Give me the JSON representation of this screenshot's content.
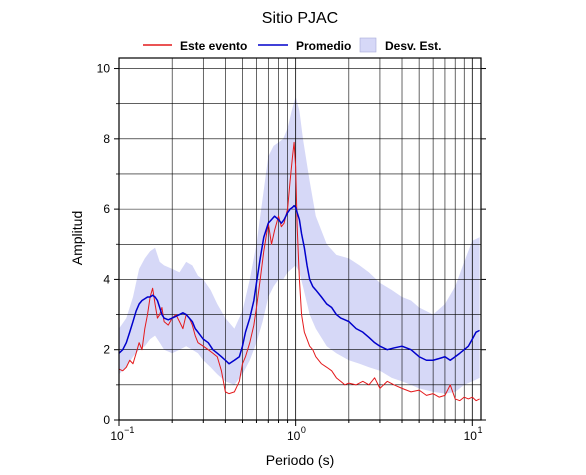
{
  "chart_data": {
    "type": "line",
    "title": "Sitio PJAC",
    "xlabel": "Periodo (s)",
    "ylabel": "Amplitud",
    "x_scale": "log",
    "xlim": [
      0.1,
      11.2
    ],
    "ylim": [
      0,
      10.3
    ],
    "y_ticks": [
      0,
      2,
      4,
      6,
      8,
      10
    ],
    "x_tick_labels": [
      {
        "value": 0.1,
        "base": "10",
        "exp": "−1"
      },
      {
        "value": 1,
        "base": "10",
        "exp": "0"
      },
      {
        "value": 10,
        "base": "10",
        "exp": "1"
      }
    ],
    "grid": true,
    "legend_position": "top",
    "legend": [
      {
        "label": "Este evento",
        "color": "#e41a1c",
        "kind": "line"
      },
      {
        "label": "Promedio",
        "color": "#0000cc",
        "kind": "line"
      },
      {
        "label": "Desv. Est.",
        "color": "#d6d8f7",
        "kind": "band"
      }
    ],
    "series": [
      {
        "name": "Este evento",
        "color": "#e41a1c",
        "x": [
          0.1,
          0.105,
          0.11,
          0.115,
          0.12,
          0.125,
          0.13,
          0.135,
          0.14,
          0.145,
          0.15,
          0.155,
          0.16,
          0.165,
          0.17,
          0.175,
          0.18,
          0.19,
          0.2,
          0.21,
          0.22,
          0.23,
          0.24,
          0.25,
          0.26,
          0.27,
          0.28,
          0.3,
          0.32,
          0.34,
          0.36,
          0.38,
          0.4,
          0.42,
          0.45,
          0.48,
          0.5,
          0.52,
          0.55,
          0.58,
          0.6,
          0.63,
          0.66,
          0.7,
          0.73,
          0.76,
          0.8,
          0.83,
          0.86,
          0.9,
          0.93,
          0.96,
          0.98,
          1.0,
          1.02,
          1.05,
          1.08,
          1.12,
          1.16,
          1.2,
          1.25,
          1.3,
          1.4,
          1.5,
          1.6,
          1.7,
          1.8,
          1.9,
          2.0,
          2.2,
          2.4,
          2.6,
          2.8,
          3.0,
          3.3,
          3.6,
          4.0,
          4.5,
          5.0,
          5.5,
          6.0,
          6.5,
          7.0,
          7.5,
          8.0,
          8.5,
          9.0,
          9.5,
          10.0,
          10.5,
          11.0
        ],
        "values": [
          1.45,
          1.4,
          1.5,
          1.7,
          1.6,
          1.9,
          2.2,
          2.0,
          2.6,
          3.0,
          3.5,
          3.75,
          3.3,
          2.9,
          3.0,
          3.2,
          2.8,
          2.7,
          2.9,
          3.0,
          2.8,
          2.6,
          3.0,
          2.9,
          2.7,
          2.4,
          2.2,
          2.1,
          2.0,
          1.9,
          1.8,
          1.4,
          0.8,
          0.75,
          0.8,
          1.1,
          1.6,
          1.8,
          2.2,
          2.7,
          3.2,
          4.0,
          4.8,
          5.6,
          5.0,
          5.4,
          5.8,
          5.5,
          5.6,
          6.0,
          6.8,
          7.5,
          7.9,
          7.2,
          5.5,
          4.0,
          3.0,
          2.5,
          2.3,
          2.1,
          2.0,
          1.8,
          1.6,
          1.5,
          1.4,
          1.2,
          1.1,
          1.0,
          1.05,
          1.0,
          1.1,
          1.0,
          1.2,
          0.9,
          1.1,
          1.0,
          0.9,
          0.8,
          0.85,
          0.7,
          0.75,
          0.65,
          0.7,
          1.0,
          0.6,
          0.55,
          0.65,
          0.6,
          0.65,
          0.55,
          0.6
        ]
      },
      {
        "name": "Promedio",
        "color": "#0000cc",
        "x": [
          0.1,
          0.105,
          0.11,
          0.115,
          0.12,
          0.125,
          0.13,
          0.135,
          0.14,
          0.145,
          0.15,
          0.155,
          0.16,
          0.165,
          0.17,
          0.175,
          0.18,
          0.19,
          0.2,
          0.21,
          0.22,
          0.23,
          0.24,
          0.25,
          0.26,
          0.27,
          0.28,
          0.3,
          0.32,
          0.34,
          0.36,
          0.38,
          0.4,
          0.42,
          0.45,
          0.48,
          0.5,
          0.52,
          0.55,
          0.58,
          0.6,
          0.63,
          0.66,
          0.7,
          0.73,
          0.76,
          0.8,
          0.83,
          0.86,
          0.9,
          0.93,
          0.96,
          0.98,
          1.0,
          1.02,
          1.05,
          1.08,
          1.12,
          1.16,
          1.2,
          1.25,
          1.3,
          1.4,
          1.5,
          1.6,
          1.7,
          1.8,
          1.9,
          2.0,
          2.2,
          2.4,
          2.6,
          2.8,
          3.0,
          3.3,
          3.6,
          4.0,
          4.5,
          5.0,
          5.5,
          6.0,
          6.5,
          7.0,
          7.5,
          8.0,
          8.5,
          9.0,
          9.5,
          10.0,
          10.5,
          11.0
        ],
        "values": [
          1.9,
          2.0,
          2.2,
          2.5,
          2.8,
          3.1,
          3.3,
          3.4,
          3.45,
          3.5,
          3.5,
          3.55,
          3.5,
          3.4,
          3.2,
          3.0,
          2.9,
          2.85,
          2.9,
          2.95,
          3.0,
          3.05,
          3.0,
          2.9,
          2.8,
          2.6,
          2.5,
          2.3,
          2.2,
          2.0,
          1.9,
          1.8,
          1.7,
          1.6,
          1.7,
          1.8,
          2.1,
          2.5,
          2.9,
          3.4,
          3.9,
          4.6,
          5.2,
          5.6,
          5.7,
          5.8,
          5.7,
          5.6,
          5.7,
          5.9,
          6.0,
          6.05,
          6.1,
          6.05,
          5.9,
          5.7,
          5.3,
          4.9,
          4.4,
          4.0,
          3.8,
          3.7,
          3.5,
          3.3,
          3.2,
          3.0,
          2.9,
          2.85,
          2.8,
          2.6,
          2.5,
          2.35,
          2.2,
          2.1,
          2.0,
          2.05,
          2.1,
          2.0,
          1.8,
          1.7,
          1.7,
          1.75,
          1.8,
          1.7,
          1.8,
          1.9,
          2.0,
          2.1,
          2.3,
          2.5,
          2.55
        ]
      }
    ],
    "band": {
      "name": "Desv. Est.",
      "color": "#d6d8f7",
      "x": [
        0.1,
        0.11,
        0.12,
        0.13,
        0.14,
        0.15,
        0.16,
        0.17,
        0.18,
        0.2,
        0.22,
        0.24,
        0.26,
        0.28,
        0.3,
        0.33,
        0.36,
        0.4,
        0.45,
        0.5,
        0.55,
        0.6,
        0.65,
        0.7,
        0.75,
        0.8,
        0.85,
        0.9,
        0.95,
        1.0,
        1.05,
        1.1,
        1.2,
        1.3,
        1.5,
        1.7,
        2.0,
        2.3,
        2.6,
        3.0,
        3.5,
        4.0,
        4.5,
        5.0,
        6.0,
        7.0,
        8.0,
        9.0,
        10.0,
        11.0
      ],
      "upper": [
        2.6,
        2.9,
        3.5,
        4.3,
        4.6,
        4.8,
        4.9,
        4.5,
        4.4,
        4.3,
        4.2,
        4.5,
        4.4,
        4.1,
        4.0,
        3.7,
        3.3,
        2.9,
        2.6,
        3.1,
        4.0,
        5.0,
        6.3,
        7.5,
        7.8,
        7.9,
        8.0,
        8.3,
        8.8,
        9.2,
        8.8,
        8.0,
        6.8,
        5.8,
        5.0,
        4.7,
        4.6,
        4.4,
        4.2,
        3.9,
        3.7,
        3.5,
        3.4,
        3.2,
        3.0,
        3.3,
        3.8,
        4.5,
        5.1,
        5.2
      ],
      "lower": [
        1.3,
        1.5,
        1.8,
        2.0,
        2.1,
        2.3,
        2.4,
        2.2,
        2.0,
        1.9,
        2.0,
        2.1,
        2.0,
        1.9,
        1.7,
        1.5,
        1.3,
        1.1,
        1.0,
        1.3,
        1.7,
        2.2,
        2.8,
        3.5,
        3.8,
        4.0,
        4.0,
        4.2,
        4.3,
        4.4,
        4.2,
        3.8,
        3.0,
        2.6,
        2.1,
        1.9,
        1.7,
        1.6,
        1.5,
        1.4,
        1.2,
        1.1,
        1.0,
        0.9,
        0.8,
        0.75,
        0.8,
        1.0,
        1.1,
        1.2
      ]
    }
  }
}
